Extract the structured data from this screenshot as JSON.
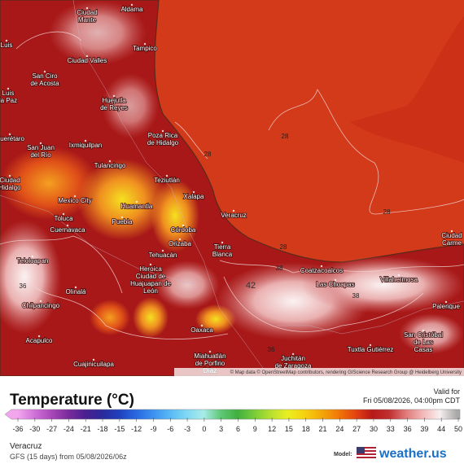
{
  "map": {
    "labels": [
      [
        "Aldama"
      ],
      [
        "Ciudad",
        "Mante"
      ],
      [
        "Tampico"
      ],
      [
        "Luis"
      ],
      [
        "Ciudad Valles"
      ],
      [
        "San Ciro",
        "de Acosta"
      ],
      [
        "Huejutla",
        "de Reyes"
      ],
      [
        "Luis",
        "la Paz"
      ],
      [
        "Poza Rica",
        "de Hidalgo"
      ],
      [
        "Ixmiquilpan"
      ],
      [
        "San Juan",
        "del Río"
      ],
      [
        "Querétaro"
      ],
      [
        "Tulancingo"
      ],
      [
        "Teziutlán"
      ],
      [
        "Ciudad",
        "Hidalgo"
      ],
      [
        "Mexico City"
      ],
      [
        "Xalapa"
      ],
      [
        "Huamantla"
      ],
      [
        "Toluca"
      ],
      [
        "Puebla"
      ],
      [
        "Veracruz"
      ],
      [
        "Cuernavaca"
      ],
      [
        "Córdoba"
      ],
      [
        "Orizaba"
      ],
      [
        "Tehuacán"
      ],
      [
        "Tierra",
        "Blanca"
      ],
      [
        "Teloloapan"
      ],
      [
        "Heroica",
        "Ciudad de",
        "Huajuapan de",
        "León"
      ],
      [
        "Coatzacoalcos"
      ],
      [
        "Las Choapas"
      ],
      [
        "Villahermosa"
      ],
      [
        "Chilpancingo"
      ],
      [
        "Olinalá"
      ],
      [
        "Oaxaca"
      ],
      [
        "Acapulco"
      ],
      [
        "Cuajinicuilapa"
      ],
      [
        "Miahuatlán",
        "de Porfirio",
        "Díaz"
      ],
      [
        "Juchitán",
        "de Zaragoza"
      ],
      [
        "Tuxtla Gutiérrez"
      ],
      [
        "San Cristóbal",
        "de Las",
        "Casas"
      ],
      [
        "Palenque"
      ],
      [
        "Ciudad",
        "Carme"
      ]
    ],
    "contour_labels": [
      28,
      28,
      28,
      28,
      38,
      38,
      36,
      36,
      42
    ],
    "attribution": "© Map data © OpenStreetMap contributors, rendering GIScience Research Group @ Heidelberg University"
  },
  "legend": {
    "title": "Temperature (°C)",
    "valid_label": "Valid for",
    "valid_time": "Fri 05/08/2026, 04:00pm CDT",
    "ticks": [
      -36,
      -30,
      -27,
      -24,
      -21,
      -18,
      -15,
      -12,
      -9,
      -6,
      -3,
      0,
      3,
      6,
      9,
      12,
      15,
      18,
      21,
      24,
      27,
      30,
      33,
      36,
      39,
      44,
      50
    ],
    "colors": [
      "#f2a6ee",
      "#d070d8",
      "#a848b8",
      "#7a2a9c",
      "#4a2090",
      "#2a2a9a",
      "#2040c0",
      "#2868e0",
      "#3c90f0",
      "#58b8f4",
      "#80d8f4",
      "#a8ece8",
      "#60c878",
      "#40b040",
      "#78cc38",
      "#b8e030",
      "#eaf020",
      "#f6d010",
      "#f4a808",
      "#f07808",
      "#e44410",
      "#b81818",
      "#c03030",
      "#e07a7a",
      "#f2b8b8",
      "#f8eeee",
      "#a8a8a8"
    ]
  },
  "footer": {
    "location": "Veracruz",
    "model_run": "GFS (15 days) from 05/08/2026/06z",
    "model_label": "Model:",
    "brand": "weather.us"
  }
}
